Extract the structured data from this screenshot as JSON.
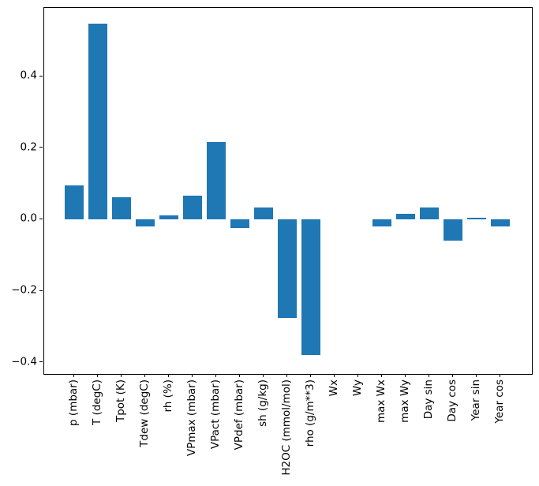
{
  "chart_data": {
    "type": "bar",
    "title": "",
    "xlabel": "",
    "ylabel": "",
    "categories": [
      "p (mbar)",
      "T (degC)",
      "Tpot (K)",
      "Tdew (degC)",
      "rh (%)",
      "VPmax (mbar)",
      "VPact (mbar)",
      "VPdef (mbar)",
      "sh (g/kg)",
      "H2OC (mmol/mol)",
      "rho (g/m**3)",
      "Wx",
      "Wy",
      "max Wx",
      "max Wy",
      "Day sin",
      "Day cos",
      "Year sin",
      "Year cos"
    ],
    "values": [
      0.096,
      0.548,
      0.062,
      -0.02,
      0.012,
      0.067,
      0.217,
      -0.024,
      0.034,
      -0.276,
      -0.381,
      0.0,
      0.0,
      -0.021,
      0.015,
      0.034,
      -0.06,
      0.004,
      -0.02
    ],
    "bar_color": "#1f77b4",
    "background_color": "#ffffff",
    "spine_color": "#000000",
    "ylim": [
      -0.433,
      0.592
    ],
    "ytick_values": [
      0.4,
      0.2,
      0.0,
      -0.2,
      -0.4
    ],
    "ytick_labels": [
      "0.4",
      "0.2",
      "0.0",
      "−0.2",
      "−0.4"
    ],
    "x_tick_rotation": 90,
    "grid": false,
    "legend": null
  }
}
